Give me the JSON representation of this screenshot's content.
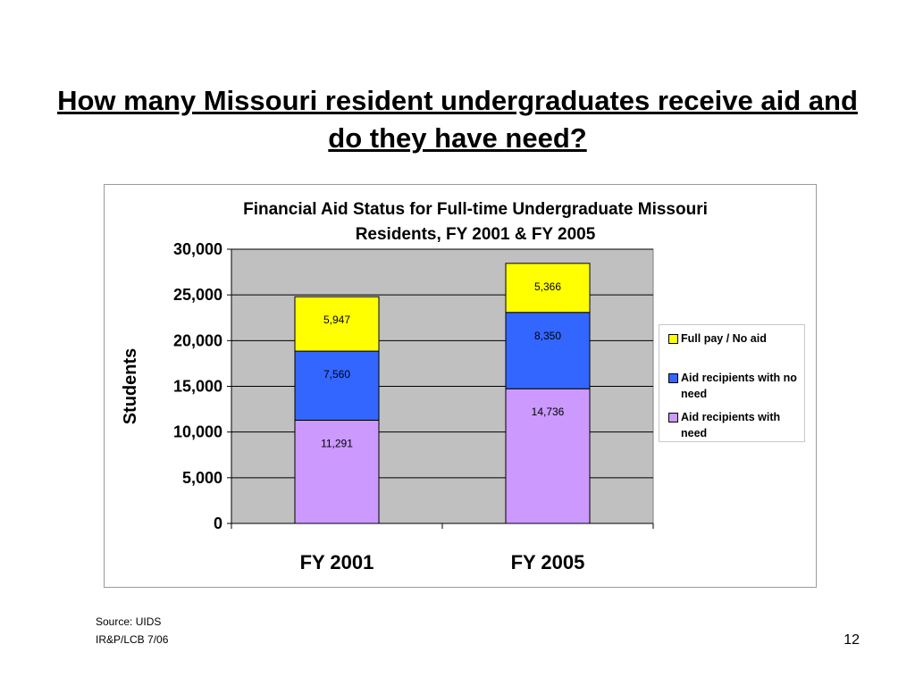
{
  "slide": {
    "title_line1": "How many Missouri resident undergraduates receive aid and",
    "title_line2": "do they have need?",
    "source": "Source: UIDS",
    "org": "IR&P/LCB  7/06",
    "page_number": "12"
  },
  "chart_data": {
    "type": "bar",
    "stacked": true,
    "title_line1": "Financial Aid Status for Full-time Undergraduate Missouri",
    "title_line2": "Residents, FY 2001 & FY 2005",
    "ylabel": "Students",
    "xlabel": "",
    "ylim": [
      0,
      30000
    ],
    "yticks": [
      0,
      5000,
      10000,
      15000,
      20000,
      25000,
      30000
    ],
    "ytick_labels": [
      "0",
      "5,000",
      "10,000",
      "15,000",
      "20,000",
      "25,000",
      "30,000"
    ],
    "categories": [
      "FY 2001",
      "FY 2005"
    ],
    "series": [
      {
        "name": "Aid recipients with need",
        "values": [
          11291,
          14736
        ],
        "labels": [
          "11,291",
          "14,736"
        ],
        "color": "#cc99ff"
      },
      {
        "name": "Aid recipients with no need",
        "values": [
          7560,
          8350
        ],
        "labels": [
          "7,560",
          "8,350"
        ],
        "color": "#3366ff"
      },
      {
        "name": "Full pay / No aid",
        "values": [
          5947,
          5366
        ],
        "labels": [
          "5,947",
          "5,366"
        ],
        "color": "#ffff00"
      }
    ],
    "legend_order": [
      2,
      1,
      0
    ],
    "legend_position": "right",
    "grid": true,
    "plot_background": "#c0c0c0"
  }
}
